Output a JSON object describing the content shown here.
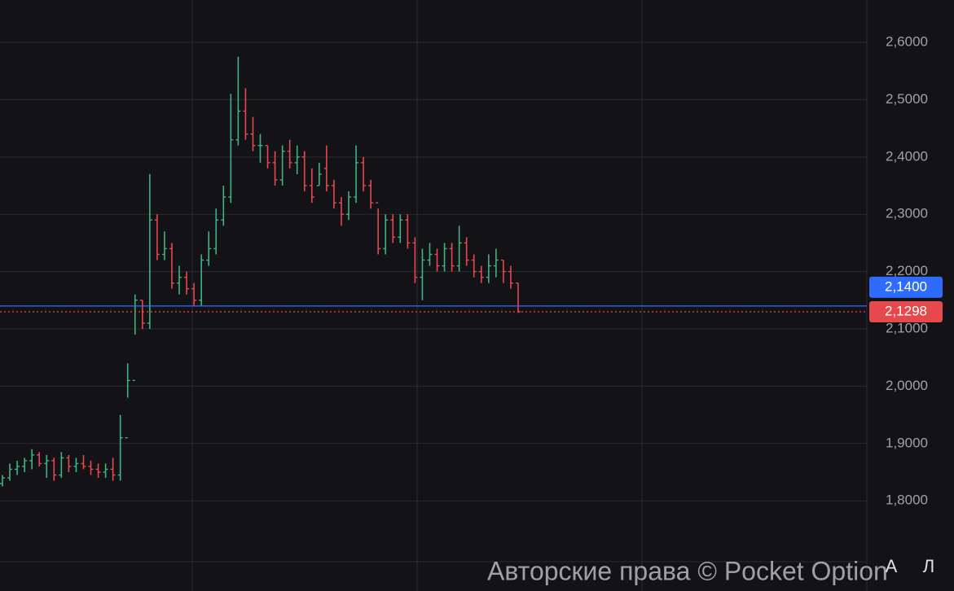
{
  "chart_data": {
    "type": "ohlc",
    "up_color": "#3fb37f",
    "down_color": "#e5484d",
    "ylim": [
      1.6426,
      2.6739
    ],
    "yticks": [
      {
        "value": 1.8,
        "label": "1,8000"
      },
      {
        "value": 1.9,
        "label": "1,9000"
      },
      {
        "value": 2.0,
        "label": "2,0000"
      },
      {
        "value": 2.1,
        "label": "2,1000"
      },
      {
        "value": 2.2,
        "label": "2,2000"
      },
      {
        "value": 2.3,
        "label": "2,3000"
      },
      {
        "value": 2.4,
        "label": "2,4000"
      },
      {
        "value": 2.5,
        "label": "2,5000"
      },
      {
        "value": 2.6,
        "label": "2,6000"
      }
    ],
    "grid": true,
    "bars": [
      [
        1.83,
        1.845,
        1.825,
        1.84
      ],
      [
        1.84,
        1.865,
        1.835,
        1.855
      ],
      [
        1.855,
        1.87,
        1.845,
        1.86
      ],
      [
        1.86,
        1.875,
        1.85,
        1.87
      ],
      [
        1.87,
        1.89,
        1.855,
        1.88
      ],
      [
        1.88,
        1.885,
        1.86,
        1.865
      ],
      [
        1.865,
        1.88,
        1.84,
        1.87
      ],
      [
        1.87,
        1.875,
        1.835,
        1.845
      ],
      [
        1.845,
        1.885,
        1.84,
        1.875
      ],
      [
        1.875,
        1.88,
        1.85,
        1.86
      ],
      [
        1.86,
        1.875,
        1.85,
        1.865
      ],
      [
        1.865,
        1.88,
        1.855,
        1.86
      ],
      [
        1.86,
        1.87,
        1.845,
        1.855
      ],
      [
        1.855,
        1.865,
        1.84,
        1.85
      ],
      [
        1.85,
        1.865,
        1.84,
        1.855
      ],
      [
        1.855,
        1.875,
        1.835,
        1.845
      ],
      [
        1.845,
        1.95,
        1.835,
        1.91
      ],
      [
        1.91,
        2.04,
        1.98,
        2.01
      ],
      [
        2.01,
        2.16,
        2.09,
        2.15
      ],
      [
        2.15,
        2.15,
        2.1,
        2.11
      ],
      [
        2.11,
        2.37,
        2.1,
        2.29
      ],
      [
        2.29,
        2.3,
        2.22,
        2.23
      ],
      [
        2.23,
        2.27,
        2.22,
        2.24
      ],
      [
        2.24,
        2.25,
        2.17,
        2.18
      ],
      [
        2.18,
        2.21,
        2.16,
        2.19
      ],
      [
        2.19,
        2.2,
        2.16,
        2.17
      ],
      [
        2.17,
        2.18,
        2.14,
        2.15
      ],
      [
        2.15,
        2.23,
        2.14,
        2.22
      ],
      [
        2.22,
        2.27,
        2.21,
        2.24
      ],
      [
        2.24,
        2.31,
        2.23,
        2.29
      ],
      [
        2.29,
        2.35,
        2.28,
        2.33
      ],
      [
        2.33,
        2.51,
        2.32,
        2.43
      ],
      [
        2.43,
        2.575,
        2.42,
        2.48
      ],
      [
        2.48,
        2.52,
        2.43,
        2.44
      ],
      [
        2.44,
        2.47,
        2.41,
        2.42
      ],
      [
        2.42,
        2.44,
        2.39,
        2.42
      ],
      [
        2.42,
        2.42,
        2.38,
        2.39
      ],
      [
        2.39,
        2.41,
        2.35,
        2.36
      ],
      [
        2.36,
        2.42,
        2.35,
        2.41
      ],
      [
        2.41,
        2.43,
        2.38,
        2.39
      ],
      [
        2.39,
        2.42,
        2.37,
        2.4
      ],
      [
        2.4,
        2.41,
        2.34,
        2.35
      ],
      [
        2.35,
        2.38,
        2.32,
        2.33
      ],
      [
        2.35,
        2.39,
        2.35,
        2.37
      ],
      [
        2.38,
        2.42,
        2.34,
        2.35
      ],
      [
        2.35,
        2.36,
        2.31,
        2.32
      ],
      [
        2.32,
        2.33,
        2.28,
        2.3
      ],
      [
        2.3,
        2.34,
        2.29,
        2.33
      ],
      [
        2.33,
        2.42,
        2.32,
        2.39
      ],
      [
        2.39,
        2.4,
        2.34,
        2.35
      ],
      [
        2.35,
        2.36,
        2.31,
        2.32
      ],
      [
        2.32,
        2.31,
        2.23,
        2.24
      ],
      [
        2.24,
        2.3,
        2.23,
        2.29
      ],
      [
        2.29,
        2.3,
        2.25,
        2.26
      ],
      [
        2.26,
        2.3,
        2.25,
        2.29
      ],
      [
        2.29,
        2.3,
        2.24,
        2.25
      ],
      [
        2.25,
        2.26,
        2.18,
        2.19
      ],
      [
        2.19,
        2.24,
        2.15,
        2.22
      ],
      [
        2.22,
        2.25,
        2.21,
        2.23
      ],
      [
        2.23,
        2.24,
        2.2,
        2.21
      ],
      [
        2.21,
        2.25,
        2.2,
        2.24
      ],
      [
        2.24,
        2.25,
        2.2,
        2.21
      ],
      [
        2.21,
        2.28,
        2.2,
        2.25
      ],
      [
        2.25,
        2.26,
        2.21,
        2.22
      ],
      [
        2.22,
        2.23,
        2.19,
        2.2
      ],
      [
        2.2,
        2.21,
        2.18,
        2.19
      ],
      [
        2.19,
        2.23,
        2.18,
        2.21
      ],
      [
        2.21,
        2.24,
        2.19,
        2.22
      ],
      [
        2.22,
        2.22,
        2.18,
        2.2
      ],
      [
        2.2,
        2.21,
        2.17,
        2.18
      ],
      [
        2.18,
        2.18,
        2.128,
        2.13
      ]
    ],
    "price_lines": [
      {
        "value": 2.14,
        "label": "2,1400",
        "color": "#2f6bff"
      },
      {
        "value": 2.1298,
        "label": "2,1298",
        "color": "#e5484d"
      }
    ],
    "watermark": "Авторские права © Pocket Option",
    "buttons": [
      "A",
      "Л"
    ]
  }
}
